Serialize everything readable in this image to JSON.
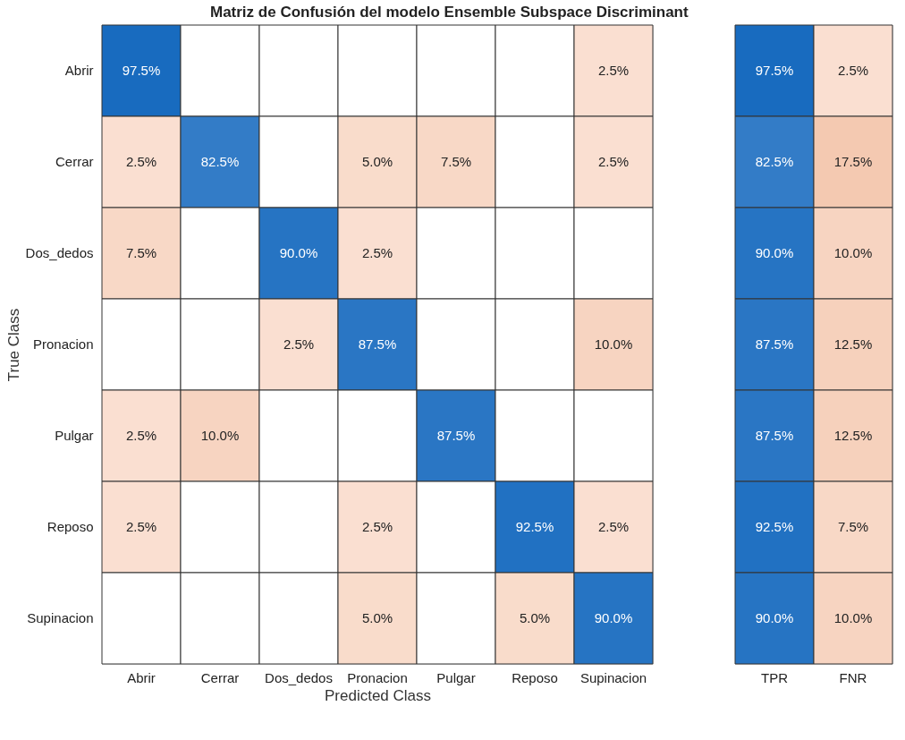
{
  "chart_data": [
    {
      "type": "heatmap",
      "title": "Matriz de Confusión del modelo Ensemble Subspace Discriminant",
      "xlabel": "Predicted Class",
      "ylabel": "True Class",
      "categories": [
        "Abrir",
        "Cerrar",
        "Dos_dedos",
        "Pronacion",
        "Pulgar",
        "Reposo",
        "Supinacion"
      ],
      "y_categories": [
        "Abrir",
        "Cerrar",
        "Dos_dedos",
        "Pronacion",
        "Pulgar",
        "Reposo",
        "Supinacion"
      ],
      "cells": [
        [
          97.5,
          null,
          null,
          null,
          null,
          null,
          2.5
        ],
        [
          2.5,
          82.5,
          null,
          5.0,
          7.5,
          null,
          2.5
        ],
        [
          7.5,
          null,
          90.0,
          2.5,
          null,
          null,
          null
        ],
        [
          null,
          null,
          2.5,
          87.5,
          null,
          null,
          10.0
        ],
        [
          2.5,
          10.0,
          null,
          null,
          87.5,
          null,
          null
        ],
        [
          2.5,
          null,
          null,
          2.5,
          null,
          92.5,
          2.5
        ],
        [
          null,
          null,
          null,
          5.0,
          null,
          5.0,
          90.0
        ]
      ],
      "cell_labels": [
        [
          "97.5%",
          null,
          null,
          null,
          null,
          null,
          "2.5%"
        ],
        [
          "2.5%",
          "82.5%",
          null,
          "5.0%",
          "7.5%",
          null,
          "2.5%"
        ],
        [
          "7.5%",
          null,
          "90.0%",
          "2.5%",
          null,
          null,
          null
        ],
        [
          null,
          null,
          "2.5%",
          "87.5%",
          null,
          null,
          "10.0%"
        ],
        [
          "2.5%",
          "10.0%",
          null,
          null,
          "87.5%",
          null,
          null
        ],
        [
          "2.5%",
          null,
          null,
          "2.5%",
          null,
          "92.5%",
          "2.5%"
        ],
        [
          null,
          null,
          null,
          "5.0%",
          null,
          "5.0%",
          "90.0%"
        ]
      ]
    },
    {
      "type": "heatmap",
      "categories": [
        "TPR",
        "FNR"
      ],
      "y_categories": [
        null,
        null,
        null,
        null,
        null,
        null,
        null
      ],
      "tick_labels": "x",
      "cells": [
        [
          97.5,
          2.5
        ],
        [
          82.5,
          17.5
        ],
        [
          90.0,
          10.0
        ],
        [
          87.5,
          12.5
        ],
        [
          87.5,
          12.5
        ],
        [
          92.5,
          7.5
        ],
        [
          90.0,
          10.0
        ]
      ],
      "cell_labels": [
        [
          "97.5%",
          "2.5%"
        ],
        [
          "82.5%",
          "17.5%"
        ],
        [
          "90.0%",
          "10.0%"
        ],
        [
          "87.5%",
          "12.5%"
        ],
        [
          "87.5%",
          "12.5%"
        ],
        [
          "92.5%",
          "7.5%"
        ],
        [
          "90.0%",
          "10.0%"
        ]
      ]
    }
  ]
}
